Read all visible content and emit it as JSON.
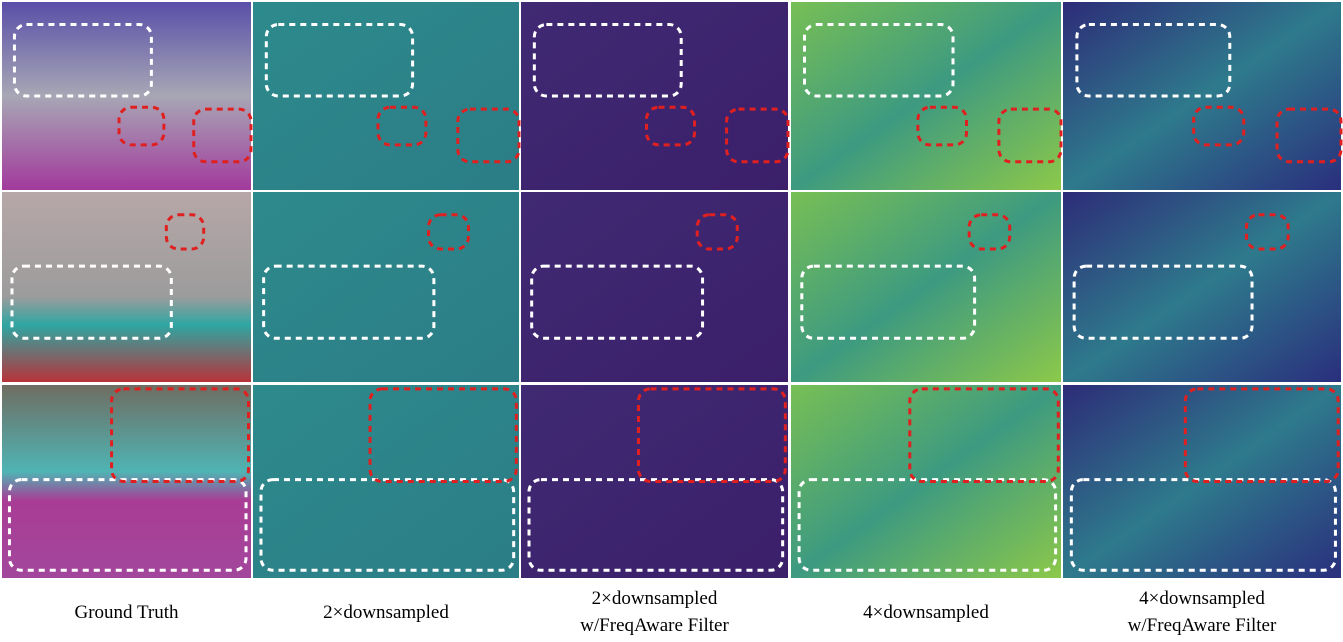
{
  "figure": {
    "captions": [
      {
        "lines": [
          "Ground Truth"
        ]
      },
      {
        "lines": [
          "2×downsampled"
        ]
      },
      {
        "lines": [
          "2×downsampled",
          "w/FreqAware Filter"
        ]
      },
      {
        "lines": [
          "4×downsampled"
        ]
      },
      {
        "lines": [
          "4×downsampled",
          "w/FreqAware Filter"
        ]
      }
    ]
  }
}
